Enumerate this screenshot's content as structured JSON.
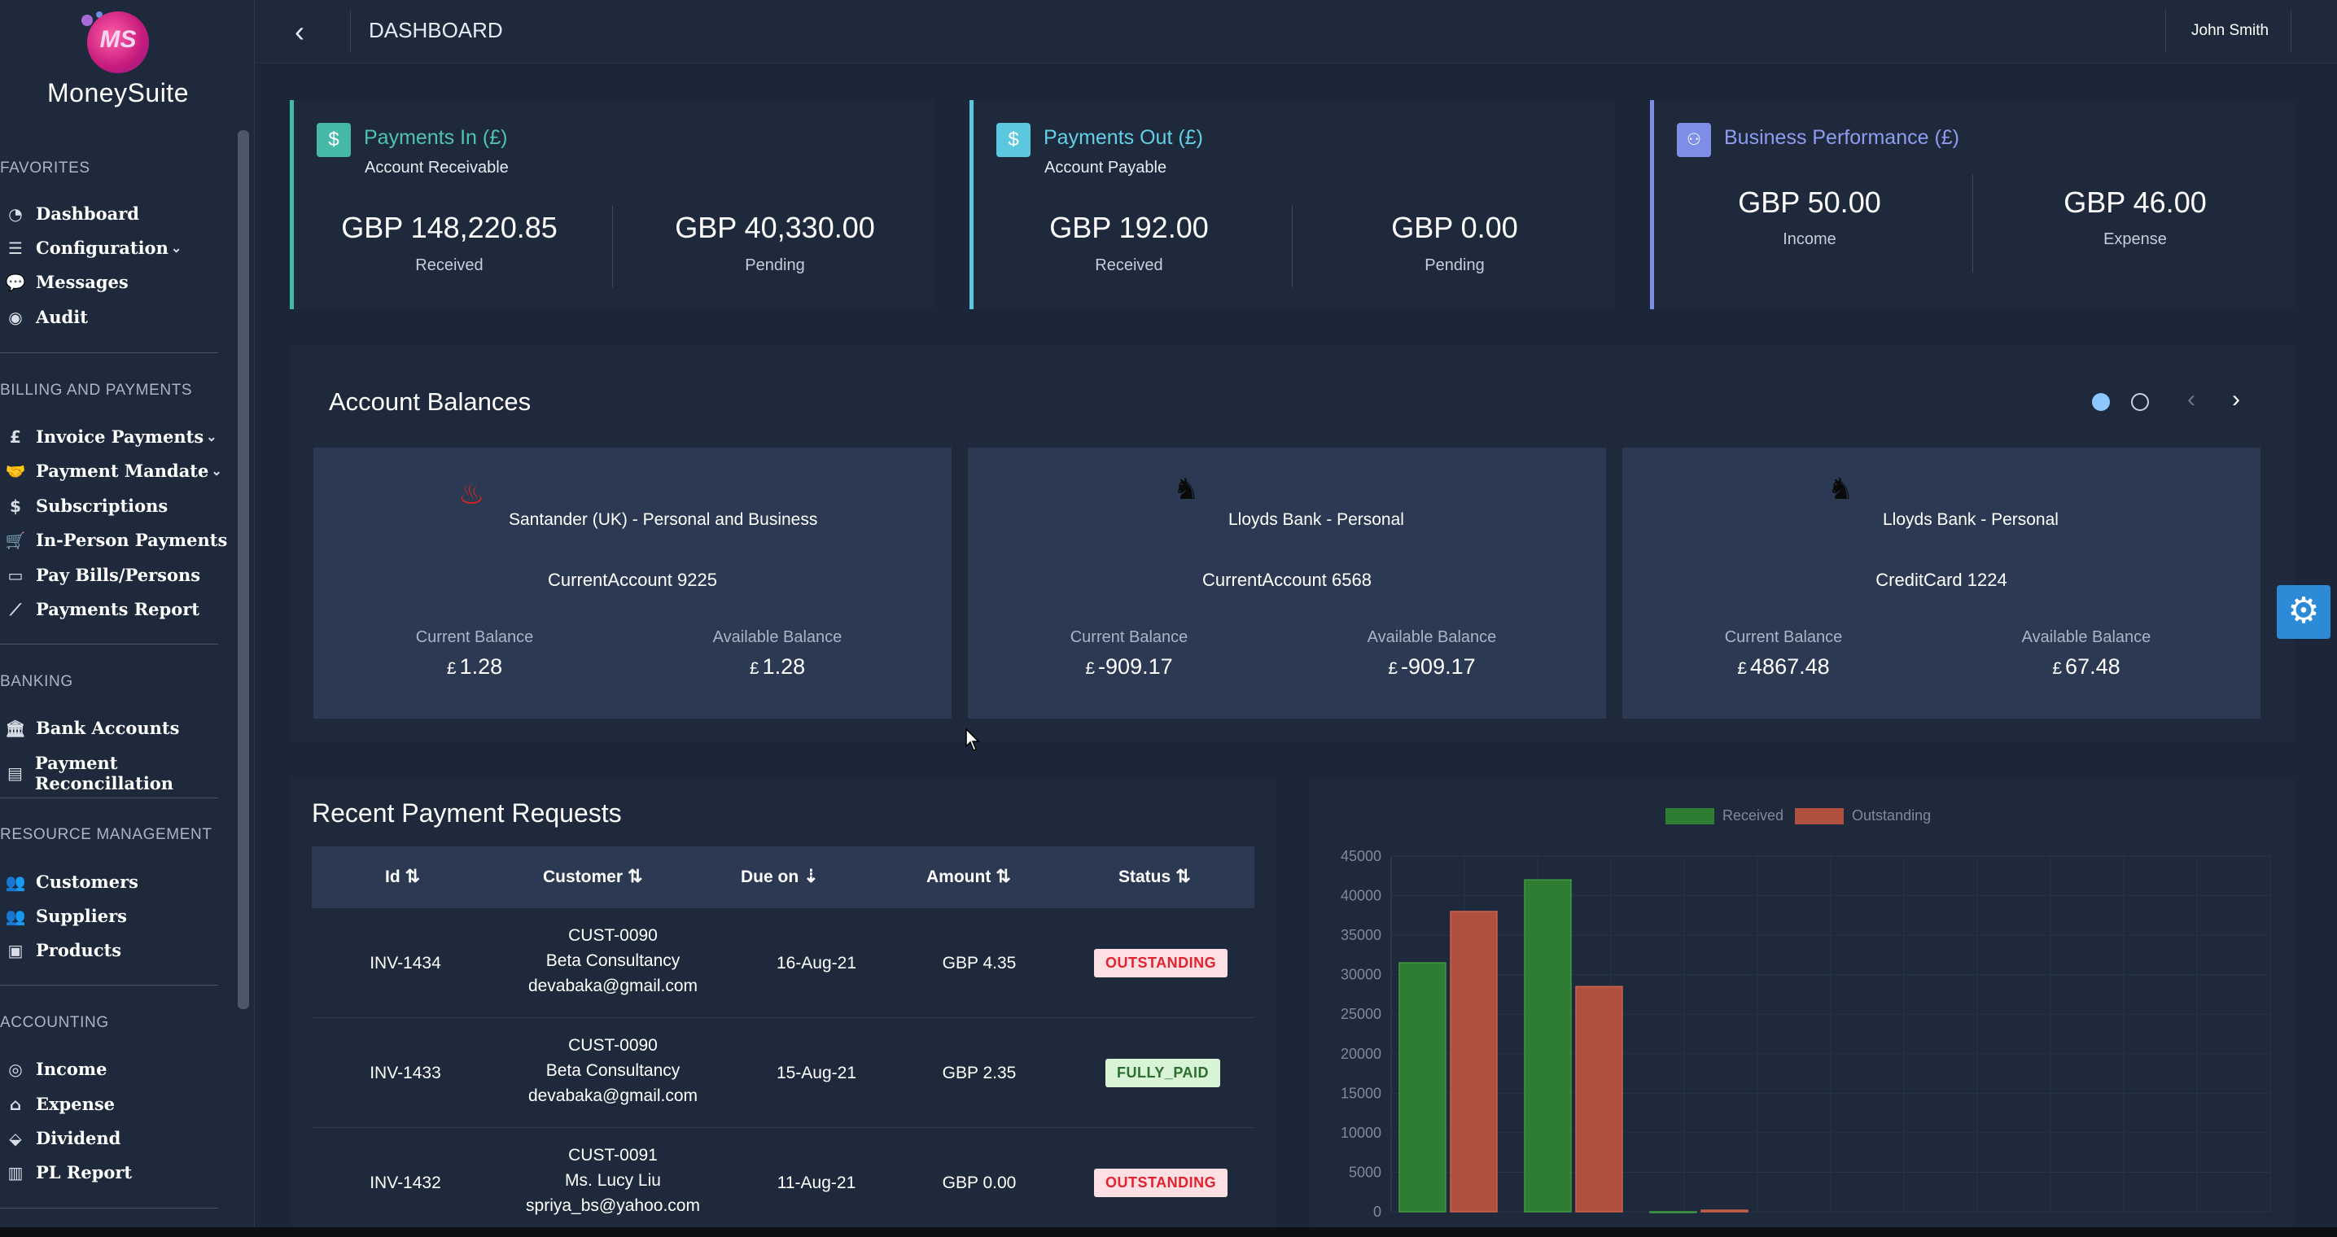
{
  "app": {
    "name": "MoneySuite",
    "logo_letters": "MS"
  },
  "topbar": {
    "back_icon": "back-arrow-icon",
    "title": "DASHBOARD",
    "user": "John Smith"
  },
  "sidebar": {
    "sections": [
      {
        "title": "FAVORITES",
        "items": [
          {
            "label": "Dashboard",
            "icon": "dashboard-icon"
          },
          {
            "label": "Configuration",
            "icon": "sliders-icon",
            "has_submenu": true
          },
          {
            "label": "Messages",
            "icon": "chat-icon"
          },
          {
            "label": "Audit",
            "icon": "eye-icon"
          }
        ]
      },
      {
        "title": "BILLING AND PAYMENTS",
        "items": [
          {
            "label": "Invoice Payments",
            "icon": "pound-icon",
            "has_submenu": true
          },
          {
            "label": "Payment Mandate",
            "icon": "handshake-icon",
            "has_submenu": true
          },
          {
            "label": "Subscriptions",
            "icon": "dollar-icon"
          },
          {
            "label": "In-Person Payments",
            "icon": "cart-icon"
          },
          {
            "label": "Pay Bills/Persons",
            "icon": "credit-card-icon"
          },
          {
            "label": "Payments Report",
            "icon": "line-chart-icon"
          }
        ]
      },
      {
        "title": "BANKING",
        "items": [
          {
            "label": "Bank Accounts",
            "icon": "bank-icon"
          },
          {
            "label": "Payment Reconcillation",
            "icon": "book-icon"
          }
        ]
      },
      {
        "title": "RESOURCE MANAGEMENT",
        "items": [
          {
            "label": "Customers",
            "icon": "users-icon"
          },
          {
            "label": "Suppliers",
            "icon": "users-icon"
          },
          {
            "label": "Products",
            "icon": "box-icon"
          }
        ]
      },
      {
        "title": "ACCOUNTING",
        "items": [
          {
            "label": "Income",
            "icon": "coins-icon"
          },
          {
            "label": "Expense",
            "icon": "piggy-bank-icon"
          },
          {
            "label": "Dividend",
            "icon": "drop-icon"
          },
          {
            "label": "PL Report",
            "icon": "bar-chart-icon"
          }
        ]
      }
    ]
  },
  "summary": {
    "payments_in": {
      "title": "Payments In (£)",
      "subtitle": "Account Receivable",
      "left_value": "GBP 148,220.85",
      "left_label": "Received",
      "right_value": "GBP 40,330.00",
      "right_label": "Pending",
      "accent": "#45b9a8",
      "icon": "$"
    },
    "payments_out": {
      "title": "Payments Out (£)",
      "subtitle": "Account Payable",
      "left_value": "GBP 192.00",
      "left_label": "Received",
      "right_value": "GBP 0.00",
      "right_label": "Pending",
      "accent": "#5cc8e0",
      "icon": "$"
    },
    "performance": {
      "title": "Business Performance (£)",
      "left_value": "GBP 50.00",
      "left_label": "Income",
      "right_value": "GBP 46.00",
      "right_label": "Expense",
      "accent": "#7e8ee6",
      "icon": "people"
    }
  },
  "balances": {
    "title": "Account Balances",
    "accounts": [
      {
        "bank": "Santander (UK) - Personal and Business",
        "account": "CurrentAccount 9225",
        "current_label": "Current Balance",
        "current_symbol": "£",
        "current_amount": "1.28",
        "available_label": "Available Balance",
        "available_symbol": "£",
        "available_amount": "1.28",
        "logo": "santander-flame-icon"
      },
      {
        "bank": "Lloyds Bank - Personal",
        "account": "CurrentAccount 6568",
        "current_label": "Current Balance",
        "current_symbol": "£",
        "current_amount": "-909.17",
        "available_label": "Available Balance",
        "available_symbol": "£",
        "available_amount": "-909.17",
        "logo": "lloyds-horse-icon"
      },
      {
        "bank": "Lloyds Bank - Personal",
        "account": "CreditCard 1224",
        "current_label": "Current Balance",
        "current_symbol": "£",
        "current_amount": "4867.48",
        "available_label": "Available Balance",
        "available_symbol": "£",
        "available_amount": "67.48",
        "logo": "lloyds-horse-icon"
      }
    ]
  },
  "recent": {
    "title": "Recent Payment Requests",
    "columns": [
      "Id",
      "Customer",
      "Due on",
      "Amount",
      "Status"
    ],
    "rows": [
      {
        "id": "INV-1434",
        "cust_code": "CUST-0090",
        "cust_name": "Beta Consultancy",
        "cust_email": "devabaka@gmail.com",
        "due": "16-Aug-21",
        "amount": "GBP 4.35",
        "status": "OUTSTANDING"
      },
      {
        "id": "INV-1433",
        "cust_code": "CUST-0090",
        "cust_name": "Beta Consultancy",
        "cust_email": "devabaka@gmail.com",
        "due": "15-Aug-21",
        "amount": "GBP 2.35",
        "status": "FULLY_PAID"
      },
      {
        "id": "INV-1432",
        "cust_code": "CUST-0091",
        "cust_name": "Ms. Lucy Liu",
        "cust_email": "spriya_bs@yahoo.com",
        "due": "11-Aug-21",
        "amount": "GBP 0.00",
        "status": "OUTSTANDING"
      }
    ]
  },
  "chart_data": {
    "type": "bar",
    "series": [
      {
        "name": "Received",
        "color": "#2e7d32",
        "values": [
          31500,
          42000,
          0
        ]
      },
      {
        "name": "Outstanding",
        "color": "#b0503e",
        "values": [
          38000,
          28500,
          200
        ]
      }
    ],
    "ylim": [
      0,
      45000
    ],
    "yticks": [
      "0",
      "5000",
      "10000",
      "15000",
      "20000",
      "25000",
      "30000",
      "35000",
      "40000",
      "45000"
    ],
    "grid": true,
    "legend": "top-center"
  }
}
